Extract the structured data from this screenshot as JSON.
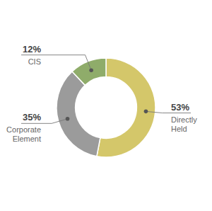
{
  "chart_data": {
    "type": "pie",
    "categories": [
      "Directly\nHeld",
      "Corporate\nElement",
      "CIS"
    ],
    "values": [
      53,
      35,
      12
    ],
    "value_labels": [
      "53%",
      "35%",
      "12%"
    ],
    "colors": [
      "#d4c76a",
      "#9b9b9b",
      "#8fac6a"
    ],
    "data_labels": true
  }
}
